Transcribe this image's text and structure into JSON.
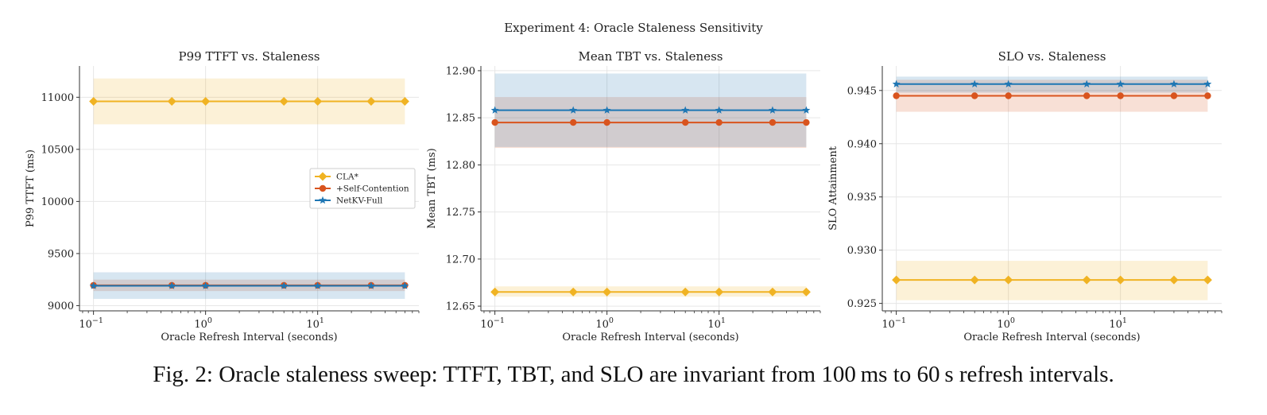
{
  "suptitle": "Experiment 4: Oracle Staleness Sensitivity",
  "caption": "Fig. 2: Oracle staleness sweep: TTFT, TBT, and SLO are invariant from 100 ms to 60 s refresh intervals.",
  "colors": {
    "cla": "#f0b323",
    "self": "#d9541e",
    "netkv": "#1f77b4",
    "grid": "#e6e6e6",
    "axis": "#333333"
  },
  "legend": {
    "entries": [
      "CLA*",
      "+Self-Contention",
      "NetKV-Full"
    ],
    "placement": "center-right",
    "panel": 0
  },
  "chart_data": [
    {
      "type": "line",
      "title": "P99 TTFT vs. Staleness",
      "xlabel": "Oracle Refresh Interval (seconds)",
      "ylabel": "P99 TTFT (ms)",
      "xscale": "log",
      "xlim": [
        0.075,
        80
      ],
      "ylim": [
        8950,
        11300
      ],
      "yticks": [
        9000,
        9500,
        10000,
        10500,
        11000
      ],
      "ytick_labels": [
        "9000",
        "9500",
        "10000",
        "10500",
        "11000"
      ],
      "x": [
        0.1,
        0.5,
        1,
        5,
        10,
        30,
        60
      ],
      "grid": true,
      "series": [
        {
          "name": "CLA*",
          "marker": "diamond",
          "values": [
            10960,
            10960,
            10960,
            10960,
            10960,
            10960,
            10960
          ],
          "band": [
            10740,
            11180
          ]
        },
        {
          "name": "+Self-Contention",
          "marker": "circle",
          "values": [
            9195,
            9195,
            9195,
            9195,
            9195,
            9195,
            9195
          ],
          "band": [
            9140,
            9250
          ]
        },
        {
          "name": "NetKV-Full",
          "marker": "star",
          "values": [
            9190,
            9190,
            9190,
            9190,
            9190,
            9190,
            9190
          ],
          "band": [
            9065,
            9320
          ]
        }
      ]
    },
    {
      "type": "line",
      "title": "Mean TBT vs. Staleness",
      "xlabel": "Oracle Refresh Interval (seconds)",
      "ylabel": "Mean TBT (ms)",
      "xscale": "log",
      "xlim": [
        0.075,
        80
      ],
      "ylim": [
        12.645,
        12.905
      ],
      "yticks": [
        12.65,
        12.7,
        12.75,
        12.8,
        12.85,
        12.9
      ],
      "ytick_labels": [
        "12.65",
        "12.70",
        "12.75",
        "12.80",
        "12.85",
        "12.90"
      ],
      "x": [
        0.1,
        0.5,
        1,
        5,
        10,
        30,
        60
      ],
      "grid": true,
      "series": [
        {
          "name": "CLA*",
          "marker": "diamond",
          "values": [
            12.665,
            12.665,
            12.665,
            12.665,
            12.665,
            12.665,
            12.665
          ],
          "band": [
            12.66,
            12.671
          ]
        },
        {
          "name": "+Self-Contention",
          "marker": "circle",
          "values": [
            12.845,
            12.845,
            12.845,
            12.845,
            12.845,
            12.845,
            12.845
          ],
          "band": [
            12.818,
            12.872
          ]
        },
        {
          "name": "NetKV-Full",
          "marker": "star",
          "values": [
            12.858,
            12.858,
            12.858,
            12.858,
            12.858,
            12.858,
            12.858
          ],
          "band": [
            12.819,
            12.897
          ]
        }
      ]
    },
    {
      "type": "line",
      "title": "SLO vs. Staleness",
      "xlabel": "Oracle Refresh Interval (seconds)",
      "ylabel": "SLO Attainment",
      "xscale": "log",
      "xlim": [
        0.075,
        80
      ],
      "ylim": [
        0.9243,
        0.9473
      ],
      "yticks": [
        0.925,
        0.93,
        0.935,
        0.94,
        0.945
      ],
      "ytick_labels": [
        "0.925",
        "0.930",
        "0.935",
        "0.940",
        "0.945"
      ],
      "x": [
        0.1,
        0.5,
        1,
        5,
        10,
        30,
        60
      ],
      "grid": true,
      "series": [
        {
          "name": "CLA*",
          "marker": "diamond",
          "values": [
            0.9272,
            0.9272,
            0.9272,
            0.9272,
            0.9272,
            0.9272,
            0.9272
          ],
          "band": [
            0.9253,
            0.929
          ]
        },
        {
          "name": "+Self-Contention",
          "marker": "circle",
          "values": [
            0.9445,
            0.9445,
            0.9445,
            0.9445,
            0.9445,
            0.9445,
            0.9445
          ],
          "band": [
            0.943,
            0.946
          ]
        },
        {
          "name": "NetKV-Full",
          "marker": "star",
          "values": [
            0.9456,
            0.9456,
            0.9456,
            0.9456,
            0.9456,
            0.9456,
            0.9456
          ],
          "band": [
            0.9448,
            0.9463
          ]
        }
      ]
    }
  ]
}
